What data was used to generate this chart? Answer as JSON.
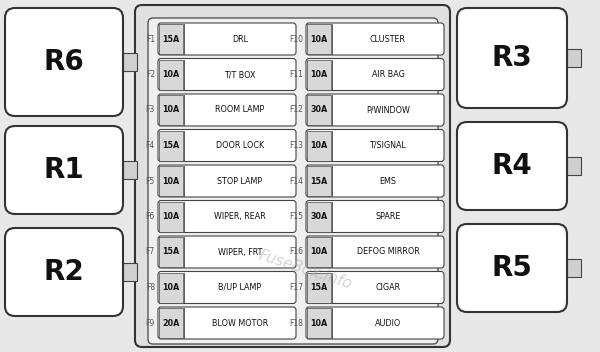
{
  "bg_color": "#e8e8e8",
  "fuses_left": [
    {
      "id": "F1",
      "amp": "15A",
      "desc": "DRL"
    },
    {
      "id": "F2",
      "amp": "10A",
      "desc": "T/T BOX"
    },
    {
      "id": "F3",
      "amp": "10A",
      "desc": "ROOM LAMP"
    },
    {
      "id": "F4",
      "amp": "15A",
      "desc": "DOOR LOCK"
    },
    {
      "id": "F5",
      "amp": "10A",
      "desc": "STOP LAMP"
    },
    {
      "id": "F6",
      "amp": "10A",
      "desc": "WIPER, REAR"
    },
    {
      "id": "F7",
      "amp": "15A",
      "desc": "WIPER, FRT"
    },
    {
      "id": "F8",
      "amp": "10A",
      "desc": "B/UP LAMP"
    },
    {
      "id": "F9",
      "amp": "20A",
      "desc": "BLOW MOTOR"
    }
  ],
  "fuses_right": [
    {
      "id": "F10",
      "amp": "10A",
      "desc": "CLUSTER"
    },
    {
      "id": "F11",
      "amp": "10A",
      "desc": "AIR BAG"
    },
    {
      "id": "F12",
      "amp": "30A",
      "desc": "P/WINDOW"
    },
    {
      "id": "F13",
      "amp": "10A",
      "desc": "T/SIGNAL"
    },
    {
      "id": "F14",
      "amp": "15A",
      "desc": "EMS"
    },
    {
      "id": "F15",
      "amp": "30A",
      "desc": "SPARE"
    },
    {
      "id": "F16",
      "amp": "10A",
      "desc": "DEFOG MIRROR"
    },
    {
      "id": "F17",
      "amp": "15A",
      "desc": "CIGAR"
    },
    {
      "id": "F18",
      "amp": "10A",
      "desc": "AUDIO"
    }
  ],
  "relays_left": [
    {
      "id": "R6"
    },
    {
      "id": "R1"
    },
    {
      "id": "R2"
    }
  ],
  "relays_right": [
    {
      "id": "R3"
    },
    {
      "id": "R4"
    },
    {
      "id": "R5"
    }
  ],
  "watermark": "FuseBox.info",
  "relay_fill": "#ffffff",
  "relay_border": "#333333",
  "box_fill": "#ffffff",
  "box_border": "#444444",
  "fuse_amp_bg": "#d8d8d8",
  "text_color": "#111111"
}
